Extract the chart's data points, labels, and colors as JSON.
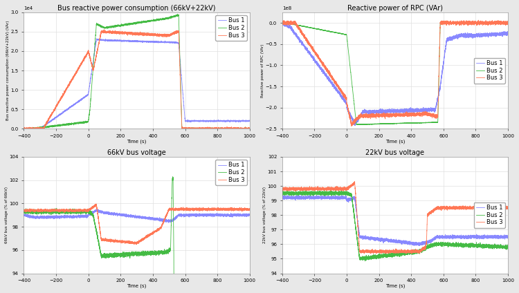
{
  "title_top_left": "Bus reactive power consumption (66kV+22kV)",
  "title_top_right": "Reactive power of RPC (VAr)",
  "title_bot_left": "66kV bus voltage",
  "title_bot_right": "22kV bus voltage",
  "xlabel": "Time (s)",
  "ylabel_tl": "Bus reactive power consumption (66kV+22kV) (VAr)",
  "ylabel_tr": "Reactive power of RPC (VAr)",
  "ylabel_bl": "66kV bus voltage (% of 66kV)",
  "ylabel_br": "22kV bus voltage (% of 22kV)",
  "colors": {
    "bus1": "#8888ff",
    "bus2": "#44bb44",
    "bus3": "#ff7755"
  },
  "xlim": [
    -400,
    1000
  ],
  "tl_ylim": [
    0,
    30000
  ],
  "tr_ylim": [
    -250000000.0,
    25000000.0
  ],
  "bl_ylim": [
    94,
    104
  ],
  "br_ylim": [
    94,
    102
  ],
  "fig_bg": "#e8e8e8",
  "ax_bg": "#ffffff",
  "grid_color": "#e0e0e0",
  "font_size_title": 7,
  "font_size_label": 5,
  "font_size_tick": 5,
  "font_size_legend": 6,
  "lw": 0.6
}
